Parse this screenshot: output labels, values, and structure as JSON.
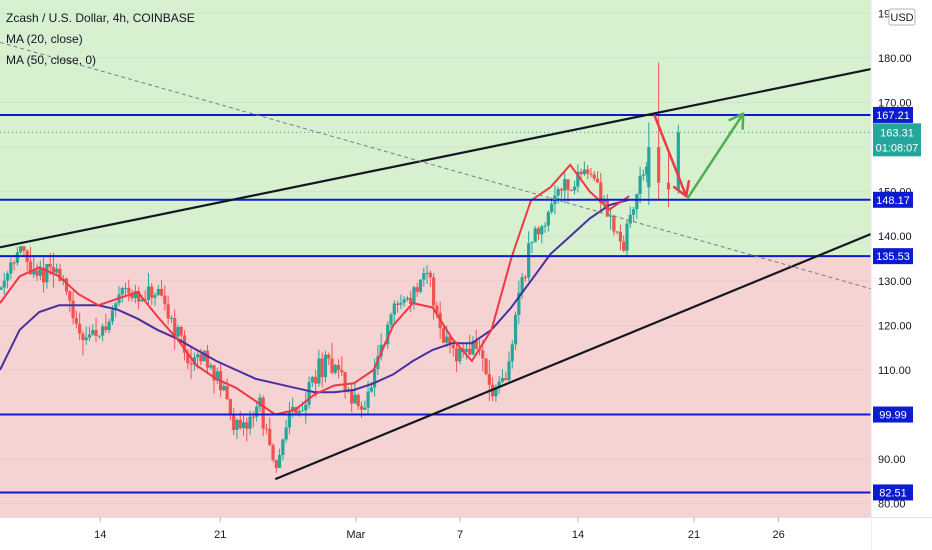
{
  "chart_data": {
    "type": "candlestick",
    "legend": {
      "title": "Zcash / U.S. Dollar, 4h, COINBASE",
      "indicators": [
        "MA (20, close)",
        "MA (50, close, 0)"
      ]
    },
    "currency": "USD",
    "price_axis": {
      "range": [
        77,
        193
      ],
      "ticks": [
        80,
        90,
        100,
        110,
        120,
        130,
        140,
        150,
        160,
        170,
        180,
        190
      ],
      "tick_labels": [
        "80.00",
        "90.00",
        "100.00",
        "110.00",
        "120.00",
        "130.00",
        "140.00",
        "150.00",
        "160.00",
        "170.00",
        "180.00",
        "190.00"
      ]
    },
    "time_axis": {
      "range": [
        0,
        44.3
      ],
      "ticks": [
        {
          "t": 5.1,
          "label": "14"
        },
        {
          "t": 11.2,
          "label": "21"
        },
        {
          "t": 18.1,
          "label": "Mar"
        },
        {
          "t": 23.4,
          "label": "7"
        },
        {
          "t": 29.4,
          "label": "14"
        },
        {
          "t": 35.3,
          "label": "21"
        },
        {
          "t": 39.6,
          "label": "26"
        }
      ]
    },
    "current_price": {
      "value": 163.31,
      "label": "163.31",
      "countdown": "01:08:07"
    },
    "levels": [
      {
        "value": 167.21,
        "label": "167.21"
      },
      {
        "value": 148.17,
        "label": "148.17"
      },
      {
        "value": 135.53,
        "label": "135.53"
      },
      {
        "value": 99.99,
        "label": "99.99"
      },
      {
        "value": 82.51,
        "label": "82.51"
      }
    ],
    "zones": [
      {
        "from": 135.53,
        "to": 193,
        "color": "#d7f0d0"
      },
      {
        "from": 77,
        "to": 135.53,
        "color": "#f6d3d3"
      }
    ],
    "trendlines": [
      {
        "from": [
          0,
          137.5
        ],
        "to": [
          44.3,
          177.5
        ],
        "color": "#131722"
      },
      {
        "from": [
          14.0,
          85.5
        ],
        "to": [
          44.3,
          140.5
        ],
        "color": "#131722"
      },
      {
        "from": [
          0,
          183.5
        ],
        "to": [
          44.3,
          128.2
        ],
        "color": "#787b86",
        "dashed": true
      }
    ],
    "projection": [
      {
        "from": [
          33.3,
          167.0
        ],
        "to": [
          34.9,
          149.0
        ],
        "color": "#f23645"
      },
      {
        "from": [
          35.0,
          148.7
        ],
        "to": [
          37.8,
          167.5
        ],
        "color": "#4caf50"
      }
    ],
    "ma20": [
      [
        0,
        125
      ],
      [
        1,
        131
      ],
      [
        2,
        133
      ],
      [
        3,
        131
      ],
      [
        4,
        127
      ],
      [
        5,
        124.5
      ],
      [
        6,
        126
      ],
      [
        7,
        127.5
      ],
      [
        8,
        122
      ],
      [
        9,
        117
      ],
      [
        10,
        111
      ],
      [
        11,
        108
      ],
      [
        12,
        106
      ],
      [
        13,
        103
      ],
      [
        14,
        100
      ],
      [
        15,
        101
      ],
      [
        16,
        104.5
      ],
      [
        17,
        106.5
      ],
      [
        18,
        107
      ],
      [
        19,
        110
      ],
      [
        20,
        120
      ],
      [
        21,
        125
      ],
      [
        22,
        124
      ],
      [
        23,
        117
      ],
      [
        24,
        112
      ],
      [
        25,
        119
      ],
      [
        26,
        135
      ],
      [
        27,
        148
      ],
      [
        28,
        151
      ],
      [
        29,
        156
      ],
      [
        30,
        150
      ],
      [
        31,
        146
      ],
      [
        32,
        149
      ]
    ],
    "ma50": [
      [
        0,
        110
      ],
      [
        1,
        119
      ],
      [
        2,
        123
      ],
      [
        3,
        124.5
      ],
      [
        4,
        124.5
      ],
      [
        5,
        124.5
      ],
      [
        6,
        123.5
      ],
      [
        7,
        121.5
      ],
      [
        8,
        119
      ],
      [
        9,
        117
      ],
      [
        10,
        114.5
      ],
      [
        11,
        112
      ],
      [
        12,
        110
      ],
      [
        13,
        108
      ],
      [
        14,
        107
      ],
      [
        15,
        106
      ],
      [
        16,
        105
      ],
      [
        17,
        105
      ],
      [
        18,
        105.5
      ],
      [
        19,
        107
      ],
      [
        20,
        109
      ],
      [
        21,
        112
      ],
      [
        22,
        114.5
      ],
      [
        23,
        116
      ],
      [
        24,
        116
      ],
      [
        25,
        119
      ],
      [
        26,
        124
      ],
      [
        27,
        130
      ],
      [
        28,
        136
      ],
      [
        29,
        140
      ],
      [
        30,
        144
      ],
      [
        31,
        147
      ],
      [
        32,
        148.2
      ]
    ],
    "price_path": [
      [
        0,
        128
      ],
      [
        0.6,
        135
      ],
      [
        1.1,
        137
      ],
      [
        1.8,
        130
      ],
      [
        2.5,
        133
      ],
      [
        3.3,
        130
      ],
      [
        3.7,
        120
      ],
      [
        4.5,
        118
      ],
      [
        5.4,
        119
      ],
      [
        6.3,
        130
      ],
      [
        7.1,
        125
      ],
      [
        7.9,
        127
      ],
      [
        8.8,
        121
      ],
      [
        9.7,
        111
      ],
      [
        10.5,
        113
      ],
      [
        11.3,
        106
      ],
      [
        12.2,
        95
      ],
      [
        13.2,
        103
      ],
      [
        14.0,
        86
      ],
      [
        14.6,
        100
      ],
      [
        15.4,
        102
      ],
      [
        16.1,
        110
      ],
      [
        17.0,
        112
      ],
      [
        17.9,
        103
      ],
      [
        18.6,
        102
      ],
      [
        19.3,
        112
      ],
      [
        20.0,
        124
      ],
      [
        20.9,
        127
      ],
      [
        21.8,
        131
      ],
      [
        22.5,
        118
      ],
      [
        23.4,
        114
      ],
      [
        24.3,
        116
      ],
      [
        25.0,
        104
      ],
      [
        25.8,
        108
      ],
      [
        26.4,
        128
      ],
      [
        27.1,
        140
      ],
      [
        27.8,
        144
      ],
      [
        28.4,
        152
      ],
      [
        29.1,
        151
      ],
      [
        29.8,
        156
      ],
      [
        30.4,
        151
      ],
      [
        31.1,
        144
      ],
      [
        31.7,
        138
      ],
      [
        32.4,
        150
      ],
      [
        33.1,
        160
      ],
      [
        33.7,
        158
      ],
      [
        34.2,
        152
      ],
      [
        34.7,
        150
      ],
      [
        35.1,
        163
      ]
    ],
    "final_candles": [
      {
        "t": 33.0,
        "open": 151,
        "high": 165.5,
        "low": 147,
        "close": 160
      },
      {
        "t": 33.5,
        "open": 160,
        "high": 179,
        "low": 148,
        "close": 152
      },
      {
        "t": 34.0,
        "open": 152,
        "high": 159,
        "low": 146.5,
        "close": 150.5
      },
      {
        "t": 34.5,
        "open": 150.5,
        "high": 165,
        "low": 149.5,
        "close": 163.3
      }
    ]
  }
}
